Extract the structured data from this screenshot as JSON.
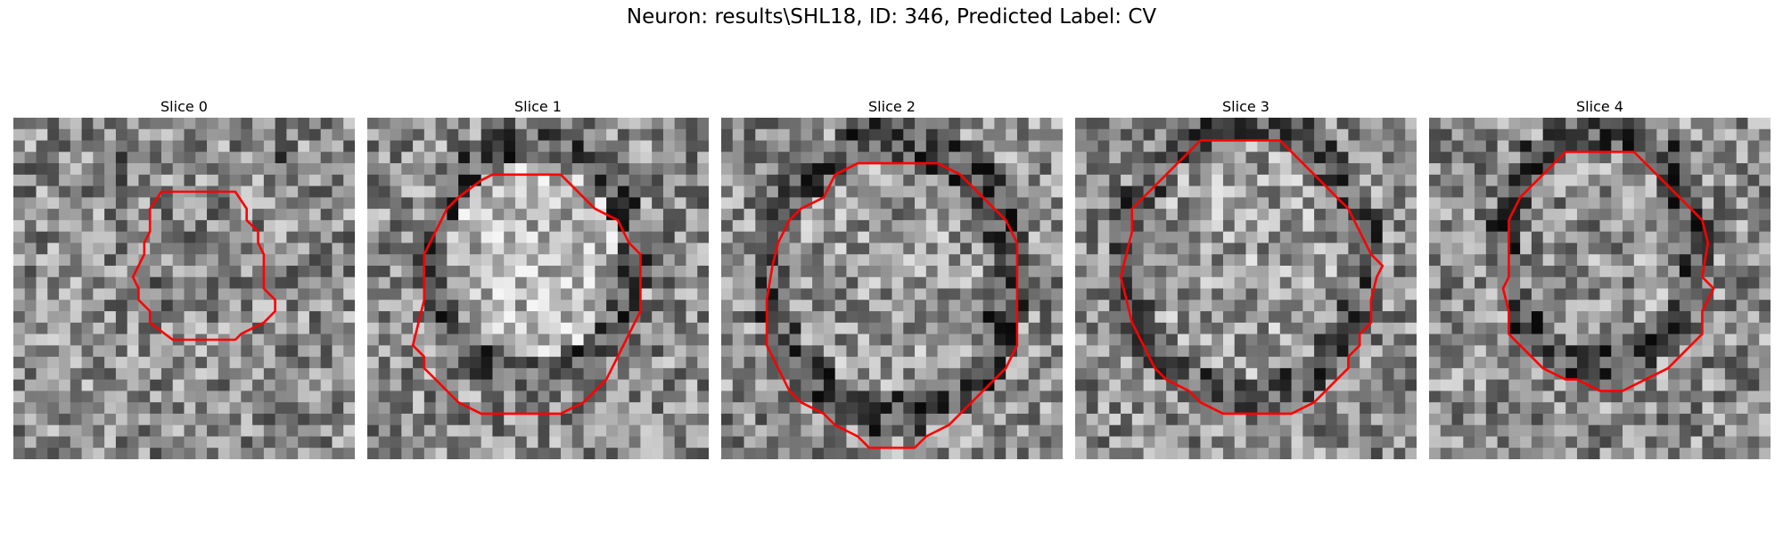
{
  "figure": {
    "title": "Neuron: results\\SHL18, ID: 346, Predicted Label: CV"
  },
  "panels": [
    {
      "title": "Slice 0",
      "seed": 11,
      "contour_color": "#ff0000"
    },
    {
      "title": "Slice 1",
      "seed": 23,
      "contour_color": "#ff0000"
    },
    {
      "title": "Slice 2",
      "seed": 37,
      "contour_color": "#ff0000"
    },
    {
      "title": "Slice 3",
      "seed": 53,
      "contour_color": "#ff0000"
    },
    {
      "title": "Slice 4",
      "seed": 71,
      "contour_color": "#ff0000"
    }
  ],
  "colors": {
    "background": "#ffffff",
    "contour": "#ff0000",
    "colormap": "grayscale"
  }
}
